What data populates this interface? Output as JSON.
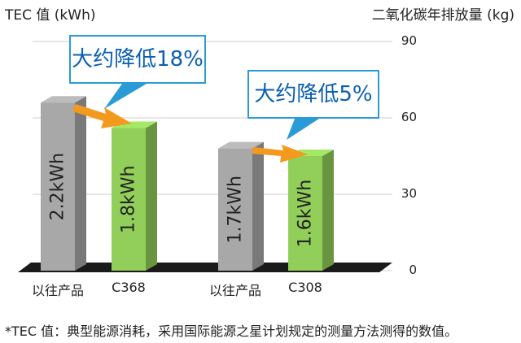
{
  "chart_data": {
    "type": "bar",
    "left_axis_title": "TEC 值 (kWh)",
    "right_axis_title": "二氧化碳年排放量 (kg)",
    "y_ticks": [
      "90",
      "60",
      "30",
      "0"
    ],
    "ylim": [
      0,
      90
    ],
    "grid": true,
    "groups": [
      {
        "bars": [
          {
            "category": "以往产品",
            "value_label": "2.2kWh",
            "co2_kg": 66,
            "color": "#a8a8a8"
          },
          {
            "category": "C368",
            "value_label": "1.8kWh",
            "co2_kg": 56,
            "color": "#92cf5a"
          }
        ],
        "callout": "大约降低18%"
      },
      {
        "bars": [
          {
            "category": "以往产品",
            "value_label": "1.7kWh",
            "co2_kg": 48,
            "color": "#a8a8a8"
          },
          {
            "category": "C308",
            "value_label": "1.6kWh",
            "co2_kg": 45,
            "color": "#92cf5a"
          }
        ],
        "callout": "大约降低5%"
      }
    ]
  },
  "footnote": "*TEC 值：典型能源消耗，采用国际能源之星计划规定的测量方法测得的数值。",
  "colors": {
    "callout_border": "#2a9bd6",
    "callout_text": "#0a5fb0",
    "arrow": "#f39a1e",
    "floor": "#1a1a1a"
  }
}
